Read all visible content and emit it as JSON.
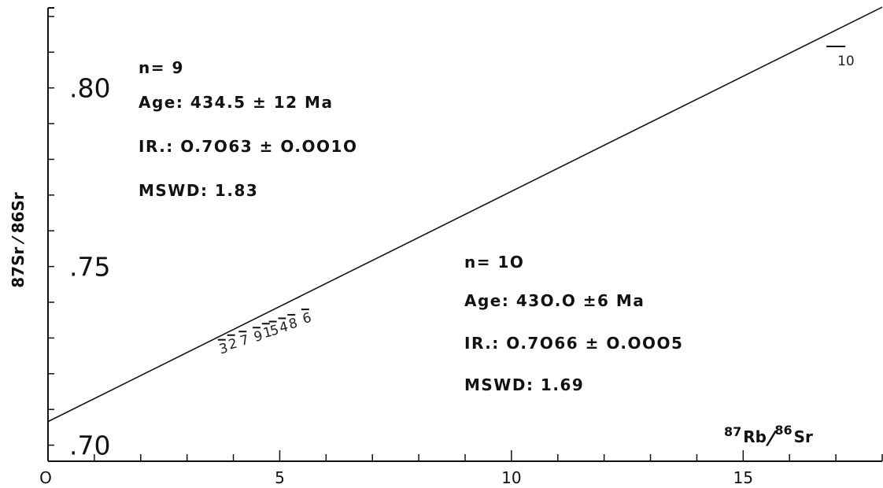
{
  "chart_data": {
    "type": "scatter",
    "x_axis": {
      "ticks": [
        "O",
        "5",
        "10",
        "15"
      ],
      "tick_values": [
        0,
        5,
        10,
        15
      ],
      "range": [
        0,
        18
      ],
      "minor_step": 1
    },
    "y_axis": {
      "ticks": [
        ".70",
        ".75",
        ".80"
      ],
      "tick_values": [
        0.7,
        0.75,
        0.8
      ],
      "range": [
        0.6955,
        0.8224
      ],
      "minor_step": 0.01
    },
    "xlabel": {
      "main": "87",
      "mid": "Rb",
      "slash": "⁄",
      "sup2": "86",
      "end": "Sr"
    },
    "ylabel": "87Sr ⁄ 86Sr",
    "grid": false,
    "series": [
      {
        "points": [
          {
            "label": "3",
            "x": 3.75,
            "y": 0.7295
          },
          {
            "label": "2",
            "x": 3.95,
            "y": 0.7308
          },
          {
            "label": "7",
            "x": 4.2,
            "y": 0.7318
          },
          {
            "label": "9",
            "x": 4.5,
            "y": 0.7329
          },
          {
            "label": "1",
            "x": 4.7,
            "y": 0.734
          },
          {
            "label": "5",
            "x": 4.85,
            "y": 0.7346
          },
          {
            "label": "4",
            "x": 5.05,
            "y": 0.7355
          },
          {
            "label": "8",
            "x": 5.25,
            "y": 0.7365
          },
          {
            "label": "6",
            "x": 5.55,
            "y": 0.738
          },
          {
            "label": "10",
            "x": 17.0,
            "y": 0.8116
          }
        ]
      }
    ],
    "regression_line": {
      "x": [
        0,
        18
      ],
      "y": [
        0.7066,
        0.8226
      ]
    },
    "annotations": {
      "n9": {
        "n": "n= 9",
        "age": "Age:  434.5 ± 12 Ma",
        "ir": "IR.:  O.7O63 ± O.OO1O",
        "mswd": "MSWD:   1.83"
      },
      "n10": {
        "n": "n= 1O",
        "age": "Age:  43O.O ±6 Ma",
        "ir": "IR.:  O.7O66 ± O.OOO5",
        "mswd": "MSWD: 1.69"
      }
    },
    "colors": {
      "line": "#111111",
      "text": "#111111"
    }
  }
}
